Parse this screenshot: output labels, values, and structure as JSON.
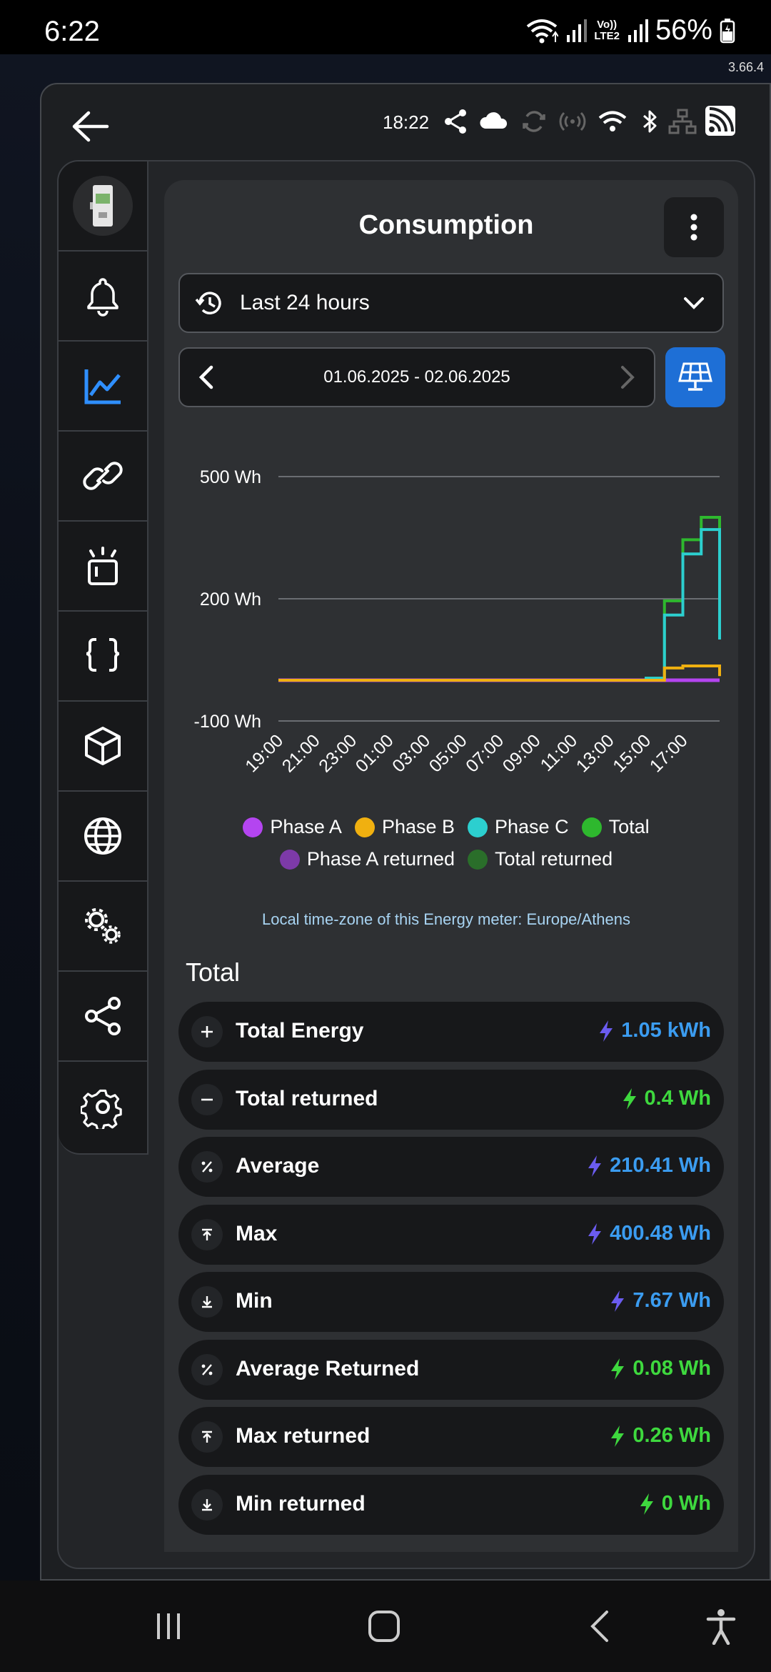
{
  "status_bar": {
    "time": "6:22",
    "lte_label_top": "Vo))",
    "lte_label_bottom": "LTE2",
    "battery": "56%"
  },
  "app_version": "3.66.4",
  "header": {
    "time": "18:22",
    "icons": [
      "share-icon",
      "cloud-icon",
      "sync-icon",
      "broadcast-icon",
      "wifi-icon",
      "bluetooth-icon",
      "network-icon",
      "cast-icon"
    ]
  },
  "sidebar": {
    "items": [
      {
        "icon": "device-image"
      },
      {
        "icon": "bell-icon"
      },
      {
        "icon": "chart-icon",
        "active": true
      },
      {
        "icon": "link-icon"
      },
      {
        "icon": "alarm-light-icon"
      },
      {
        "icon": "code-braces-icon"
      },
      {
        "icon": "cube-icon"
      },
      {
        "icon": "globe-icon"
      },
      {
        "icon": "cogs-icon"
      },
      {
        "icon": "share-icon"
      },
      {
        "icon": "settings-icon"
      }
    ]
  },
  "page": {
    "title": "Consumption",
    "range_label": "Last 24 hours",
    "date_range": "01.06.2025 - 02.06.2025",
    "timezone_note": "Local time-zone of this Energy meter: Europe/Athens",
    "total_heading": "Total"
  },
  "chart_data": {
    "type": "line",
    "y_ticks": [
      "500 Wh",
      "200 Wh",
      "-100 Wh"
    ],
    "y_tick_values": [
      500,
      200,
      -100
    ],
    "ylim": [
      -100,
      500
    ],
    "x_tick_labels": [
      "19:00",
      "21:00",
      "23:00",
      "01:00",
      "03:00",
      "05:00",
      "07:00",
      "09:00",
      "11:00",
      "13:00",
      "15:00",
      "17:00"
    ],
    "x_hours": [
      0,
      1,
      2,
      3,
      4,
      5,
      6,
      7,
      8,
      9,
      10,
      11,
      12,
      13,
      14,
      15,
      16,
      17,
      18,
      19,
      20,
      21,
      22,
      23,
      24
    ],
    "series": [
      {
        "name": "Phase A",
        "color": "#b445f0",
        "values": [
          0,
          0,
          0,
          0,
          0,
          0,
          0,
          0,
          0,
          0,
          0,
          0,
          0,
          0,
          0,
          0,
          0,
          0,
          0,
          0,
          0,
          0,
          0,
          0,
          0
        ]
      },
      {
        "name": "Phase B",
        "color": "#f0b010",
        "values": [
          0,
          0,
          0,
          0,
          0,
          0,
          0,
          0,
          0,
          0,
          0,
          0,
          0,
          0,
          0,
          0,
          0,
          0,
          0,
          0,
          0,
          30,
          35,
          35,
          10
        ]
      },
      {
        "name": "Phase C",
        "color": "#2ccfcf",
        "values": [
          0,
          0,
          0,
          0,
          0,
          0,
          0,
          0,
          0,
          0,
          0,
          0,
          0,
          0,
          0,
          0,
          0,
          0,
          0,
          0,
          5,
          160,
          310,
          370,
          100
        ]
      },
      {
        "name": "Total",
        "color": "#2eb82e",
        "values": [
          0,
          0,
          0,
          0,
          0,
          0,
          0,
          0,
          0,
          0,
          0,
          0,
          0,
          0,
          0,
          0,
          0,
          0,
          0,
          0,
          5,
          195,
          345,
          400,
          110
        ]
      },
      {
        "name": "Phase A returned",
        "color": "#7d3aa8",
        "values": [
          0,
          0,
          0,
          0,
          0,
          0,
          0,
          0,
          0,
          0,
          0,
          0,
          0,
          0,
          0,
          0,
          0,
          0,
          0,
          0,
          0,
          0,
          0,
          0,
          0
        ]
      },
      {
        "name": "Total returned",
        "color": "#2a6e2a",
        "values": [
          0,
          0,
          0,
          0,
          0,
          0,
          0,
          0,
          0,
          0,
          0,
          0,
          0,
          0,
          0,
          0,
          0,
          0,
          0,
          0,
          0,
          0,
          0,
          0,
          0
        ]
      }
    ],
    "grid": true,
    "legend_position": "bottom"
  },
  "stats": [
    {
      "icon": "plus-icon",
      "label": "Total Energy",
      "value": "1.05 kWh",
      "color": "#3b9cf0",
      "bolt": "#6b5cf0"
    },
    {
      "icon": "minus-icon",
      "label": "Total returned",
      "value": "0.4 Wh",
      "color": "#3ed83e",
      "bolt": "#3ed83e"
    },
    {
      "icon": "percent-icon",
      "label": "Average",
      "value": "210.41 Wh",
      "color": "#3b9cf0",
      "bolt": "#6b5cf0"
    },
    {
      "icon": "arrow-collapse-up-icon",
      "label": "Max",
      "value": "400.48 Wh",
      "color": "#3b9cf0",
      "bolt": "#6b5cf0"
    },
    {
      "icon": "arrow-collapse-down-icon",
      "label": "Min",
      "value": "7.67 Wh",
      "color": "#3b9cf0",
      "bolt": "#6b5cf0"
    },
    {
      "icon": "percent-icon",
      "label": "Average Returned",
      "value": "0.08 Wh",
      "color": "#3ed83e",
      "bolt": "#3ed83e"
    },
    {
      "icon": "arrow-collapse-up-icon",
      "label": "Max returned",
      "value": "0.26 Wh",
      "color": "#3ed83e",
      "bolt": "#3ed83e"
    },
    {
      "icon": "arrow-collapse-down-icon",
      "label": "Min returned",
      "value": "0 Wh",
      "color": "#3ed83e",
      "bolt": "#3ed83e"
    }
  ],
  "colors": {
    "accent": "#1e6fd6",
    "active_icon": "#2f8fff"
  }
}
